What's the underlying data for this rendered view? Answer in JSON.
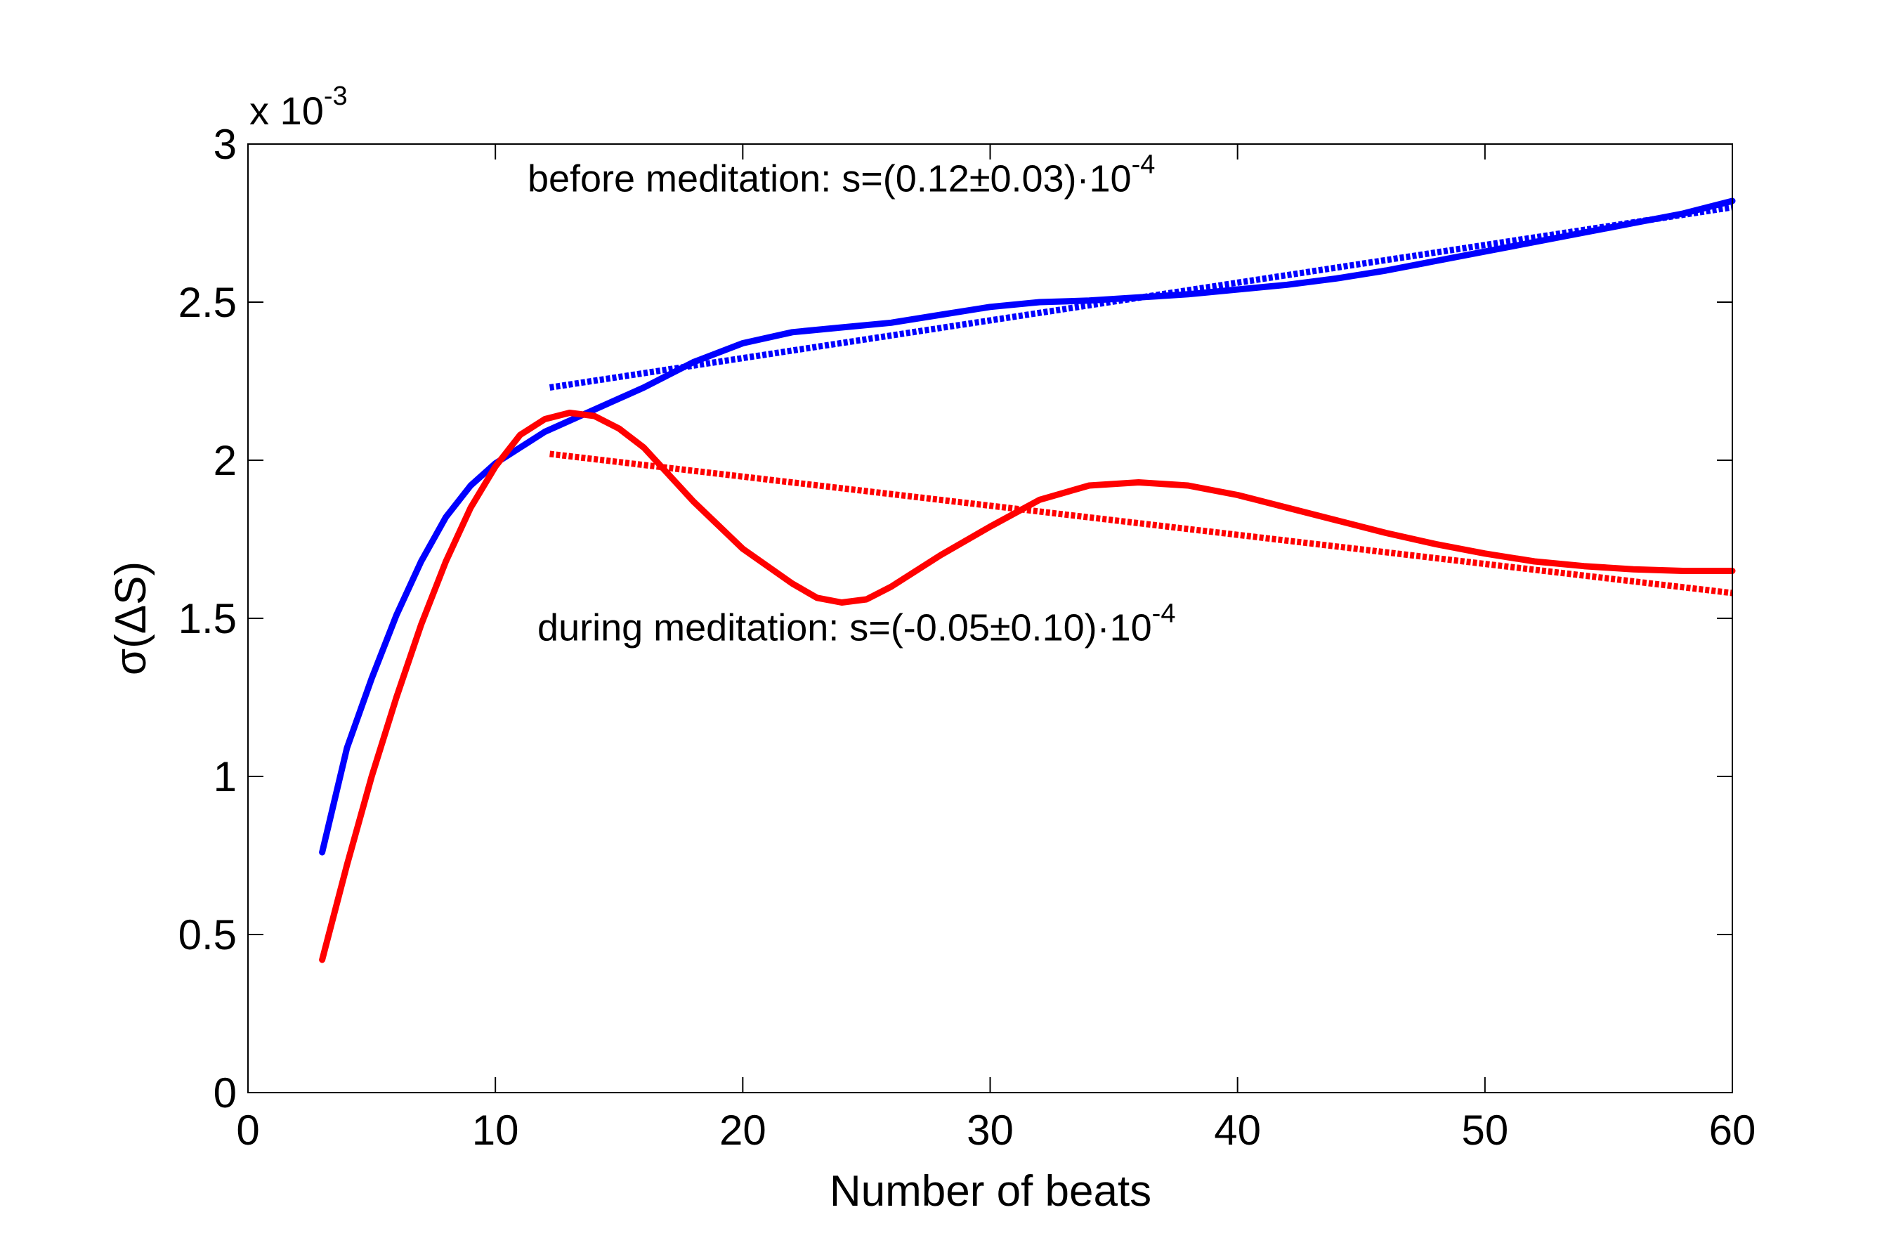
{
  "chart_data": {
    "type": "line",
    "title": "",
    "xlabel": "Number of beats",
    "ylabel": "σ(ΔS)",
    "xlim": [
      0,
      60
    ],
    "ylim": [
      0,
      3
    ],
    "x_ticks": [
      0,
      10,
      20,
      30,
      40,
      50,
      60
    ],
    "x_tick_labels": [
      "0",
      "10",
      "20",
      "30",
      "40",
      "50",
      "60"
    ],
    "y_ticks": [
      0,
      0.5,
      1,
      1.5,
      2,
      2.5,
      3
    ],
    "y_tick_labels": [
      "0",
      "0.5",
      "1",
      "1.5",
      "2",
      "2.5",
      "3"
    ],
    "y_multiplier": {
      "base": "x 10",
      "exponent": "-3"
    },
    "grid": false,
    "series": [
      {
        "name": "before meditation",
        "color": "#0000ff",
        "style": "solid",
        "x": [
          3,
          4,
          5,
          6,
          7,
          8,
          9,
          10,
          11,
          12,
          14,
          16,
          18,
          20,
          22,
          24,
          26,
          28,
          30,
          32,
          34,
          36,
          38,
          40,
          42,
          44,
          46,
          48,
          50,
          52,
          54,
          56,
          58,
          60
        ],
        "y": [
          0.76,
          1.09,
          1.31,
          1.51,
          1.68,
          1.82,
          1.92,
          1.99,
          2.04,
          2.09,
          2.16,
          2.23,
          2.31,
          2.37,
          2.405,
          2.42,
          2.435,
          2.46,
          2.485,
          2.5,
          2.505,
          2.515,
          2.525,
          2.54,
          2.555,
          2.575,
          2.6,
          2.63,
          2.66,
          2.69,
          2.72,
          2.75,
          2.78,
          2.82
        ]
      },
      {
        "name": "before meditation fit",
        "color": "#0000ff",
        "style": "dotted",
        "x": [
          12.2,
          60
        ],
        "y": [
          2.23,
          2.8
        ]
      },
      {
        "name": "during meditation",
        "color": "#ff0000",
        "style": "solid",
        "x": [
          3,
          4,
          5,
          6,
          7,
          8,
          9,
          10,
          11,
          12,
          13,
          14,
          15,
          16,
          18,
          20,
          22,
          23,
          24,
          25,
          26,
          28,
          30,
          32,
          34,
          36,
          38,
          40,
          42,
          44,
          46,
          48,
          50,
          52,
          54,
          56,
          58,
          60
        ],
        "y": [
          0.42,
          0.72,
          1.0,
          1.25,
          1.48,
          1.68,
          1.85,
          1.98,
          2.08,
          2.13,
          2.15,
          2.14,
          2.1,
          2.04,
          1.87,
          1.72,
          1.61,
          1.565,
          1.55,
          1.56,
          1.6,
          1.7,
          1.79,
          1.875,
          1.92,
          1.93,
          1.92,
          1.89,
          1.85,
          1.81,
          1.77,
          1.735,
          1.705,
          1.68,
          1.665,
          1.655,
          1.65,
          1.65
        ]
      },
      {
        "name": "during meditation fit",
        "color": "#ff0000",
        "style": "dotted",
        "x": [
          12.2,
          60
        ],
        "y": [
          2.02,
          1.58
        ]
      }
    ],
    "annotations": [
      {
        "id": "before",
        "text": "before meditation: s=(0.12±0.03)·10",
        "superscript": "-4",
        "x": 11.3,
        "y": 2.85
      },
      {
        "id": "during",
        "text": "during meditation: s=(-0.05±0.10)·10",
        "superscript": "-4",
        "x": 11.7,
        "y": 1.43
      }
    ]
  }
}
